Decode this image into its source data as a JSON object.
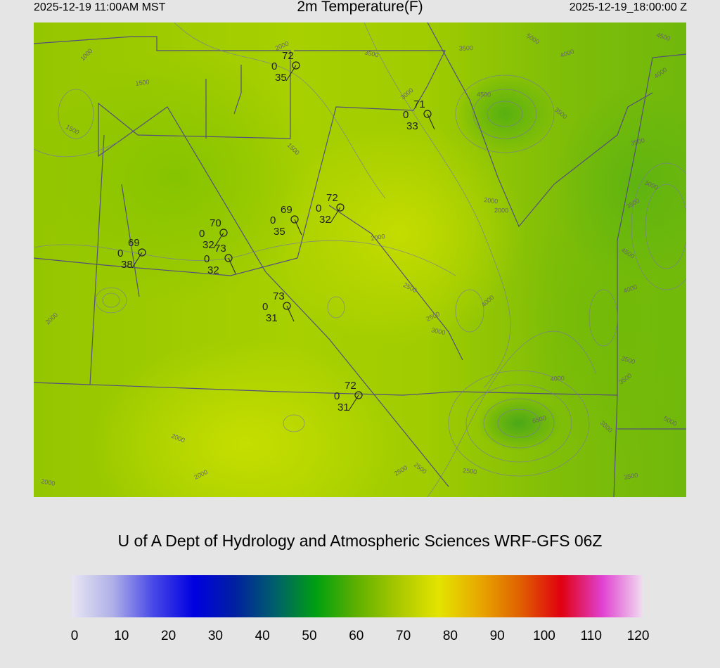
{
  "header": {
    "local_time": "2025-12-19 11:00AM MST",
    "title": "2m Temperature(F)",
    "valid_time": "2025-12-19_18:00:00 Z"
  },
  "credit": "U of A Dept of Hydrology and Atmospheric Sciences WRF-GFS 06Z",
  "stations": [
    {
      "temp": "72",
      "wind": "0",
      "dew": "35"
    },
    {
      "temp": "71",
      "wind": "0",
      "dew": "33"
    },
    {
      "temp": "72",
      "wind": "0",
      "dew": "32"
    },
    {
      "temp": "69",
      "wind": "0",
      "dew": "35"
    },
    {
      "temp": "70",
      "wind": "0",
      "dew": "32"
    },
    {
      "temp": "73",
      "wind": "0",
      "dew": "32"
    },
    {
      "temp": "69",
      "wind": "0",
      "dew": "38"
    },
    {
      "temp": "73",
      "wind": "0",
      "dew": "31"
    },
    {
      "temp": "72",
      "wind": "0",
      "dew": "31"
    }
  ],
  "contour_labels": [
    "1000",
    "1500",
    "1500",
    "2000",
    "3500",
    "3000",
    "3500",
    "5000",
    "4000",
    "4500",
    "4000",
    "4500",
    "3500",
    "3500",
    "3000",
    "3500",
    "2000",
    "1500",
    "2000",
    "2500",
    "2500",
    "3000",
    "4000",
    "4000",
    "4500",
    "4000",
    "3500",
    "3500",
    "2000",
    "2500",
    "6500",
    "2000",
    "2500",
    "2500",
    "3000",
    "3500",
    "5000",
    "2000",
    "2000",
    "2000"
  ],
  "colorbar": {
    "ticks": [
      "0",
      "10",
      "20",
      "30",
      "40",
      "50",
      "60",
      "70",
      "80",
      "90",
      "100",
      "110",
      "120"
    ],
    "colors": [
      "#e8e6f2",
      "#b0b0e8",
      "#4848e8",
      "#0000e0",
      "#0020a0",
      "#00606a",
      "#00a010",
      "#60b000",
      "#a8c800",
      "#e4e400",
      "#e8a800",
      "#e06000",
      "#e00010",
      "#e040d0",
      "#f0dcf0"
    ]
  }
}
